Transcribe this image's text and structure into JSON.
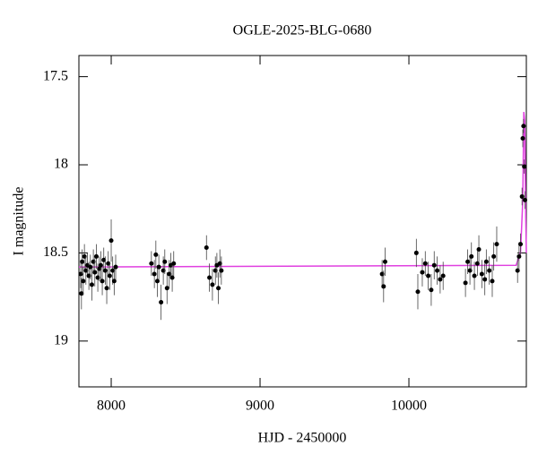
{
  "chart_data": {
    "type": "scatter",
    "title": "OGLE-2025-BLG-0680",
    "xlabel": "HJD - 2450000",
    "ylabel": "I magnitude",
    "xlim": [
      7783,
      10789
    ],
    "ylim": [
      17.38,
      19.26
    ],
    "invert_y": true,
    "xticks": [
      8000,
      9000,
      10000
    ],
    "yticks": [
      17.5,
      18,
      18.5,
      19
    ],
    "points": {
      "color": "#000000",
      "x": [
        7795,
        7800,
        7805,
        7812,
        7820,
        7830,
        7840,
        7850,
        7860,
        7870,
        7880,
        7890,
        7900,
        7910,
        7920,
        7930,
        7940,
        7950,
        7960,
        7970,
        7980,
        7990,
        8000,
        8010,
        8020,
        8030,
        8270,
        8290,
        8300,
        8310,
        8320,
        8335,
        8350,
        8360,
        8375,
        8390,
        8400,
        8410,
        8420,
        8640,
        8660,
        8680,
        8700,
        8710,
        8720,
        8730,
        8740,
        9820,
        9830,
        9840,
        10050,
        10060,
        10090,
        10110,
        10130,
        10150,
        10170,
        10190,
        10210,
        10230,
        10380,
        10395,
        10410,
        10420,
        10440,
        10460,
        10470,
        10490,
        10510,
        10520,
        10540,
        10560,
        10570,
        10590,
        10730,
        10740,
        10750,
        10760,
        10765,
        10770,
        10775,
        10780
      ],
      "values": [
        18.62,
        18.73,
        18.55,
        18.66,
        18.52,
        18.6,
        18.57,
        18.63,
        18.58,
        18.68,
        18.55,
        18.61,
        18.52,
        18.64,
        18.59,
        18.57,
        18.66,
        18.54,
        18.6,
        18.7,
        18.56,
        18.63,
        18.43,
        18.6,
        18.66,
        18.58,
        18.56,
        18.62,
        18.51,
        18.66,
        18.58,
        18.78,
        18.6,
        18.55,
        18.7,
        18.62,
        18.57,
        18.64,
        18.56,
        18.47,
        18.64,
        18.68,
        18.6,
        18.57,
        18.7,
        18.56,
        18.6,
        18.62,
        18.69,
        18.55,
        18.5,
        18.72,
        18.61,
        18.56,
        18.63,
        18.71,
        18.57,
        18.6,
        18.65,
        18.63,
        18.67,
        18.55,
        18.6,
        18.52,
        18.63,
        18.56,
        18.48,
        18.62,
        18.65,
        18.55,
        18.6,
        18.66,
        18.52,
        18.45,
        18.6,
        18.52,
        18.45,
        18.18,
        17.85,
        17.78,
        18.01,
        18.2
      ],
      "errors": [
        0.08,
        0.09,
        0.07,
        0.08,
        0.07,
        0.08,
        0.07,
        0.08,
        0.07,
        0.09,
        0.07,
        0.08,
        0.07,
        0.08,
        0.07,
        0.08,
        0.08,
        0.07,
        0.08,
        0.09,
        0.07,
        0.08,
        0.12,
        0.08,
        0.08,
        0.07,
        0.07,
        0.08,
        0.08,
        0.09,
        0.07,
        0.1,
        0.08,
        0.07,
        0.09,
        0.08,
        0.07,
        0.08,
        0.07,
        0.07,
        0.08,
        0.09,
        0.08,
        0.07,
        0.09,
        0.08,
        0.08,
        0.08,
        0.09,
        0.08,
        0.08,
        0.1,
        0.08,
        0.07,
        0.08,
        0.09,
        0.08,
        0.08,
        0.08,
        0.08,
        0.08,
        0.07,
        0.08,
        0.08,
        0.08,
        0.07,
        0.08,
        0.08,
        0.09,
        0.07,
        0.08,
        0.09,
        0.08,
        0.1,
        0.07,
        0.08,
        0.06,
        0.05,
        0.05,
        0.04,
        0.04,
        0.05
      ]
    },
    "model": {
      "color": "#e040e0",
      "x": [
        7783,
        10720,
        10750,
        10765,
        10772,
        10778,
        10785,
        10789
      ],
      "values": [
        18.58,
        18.57,
        18.5,
        18.2,
        17.7,
        17.75,
        18.3,
        18.5
      ]
    }
  }
}
